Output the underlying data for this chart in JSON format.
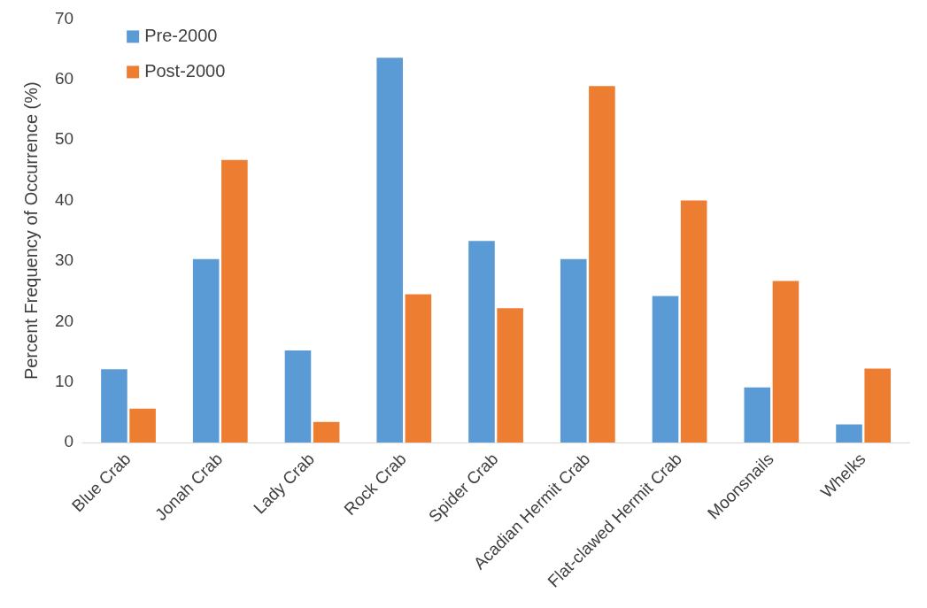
{
  "chart_data": {
    "type": "bar",
    "ylabel": "Percent Frequency of Occurrence (%)",
    "categories": [
      "Blue Crab",
      "Jonah Crab",
      "Lady Crab",
      "Rock Crab",
      "Spider Crab",
      "Acadian Hermit Crab",
      "Flat-clawed Hermit Crab",
      "Moonsnails",
      "Whelks"
    ],
    "series": [
      {
        "name": "Pre-2000",
        "color": "#5b9bd5",
        "values": [
          12.1,
          30.3,
          15.2,
          63.6,
          33.3,
          30.3,
          24.2,
          9.1,
          3.0
        ]
      },
      {
        "name": "Post-2000",
        "color": "#ed7d31",
        "values": [
          5.6,
          46.7,
          3.4,
          24.5,
          22.2,
          58.9,
          40.0,
          26.7,
          12.2
        ]
      }
    ],
    "ylim": [
      0,
      70
    ],
    "yticks": [
      0,
      10,
      20,
      30,
      40,
      50,
      60,
      70
    ],
    "grid": false,
    "legend": "top left"
  }
}
